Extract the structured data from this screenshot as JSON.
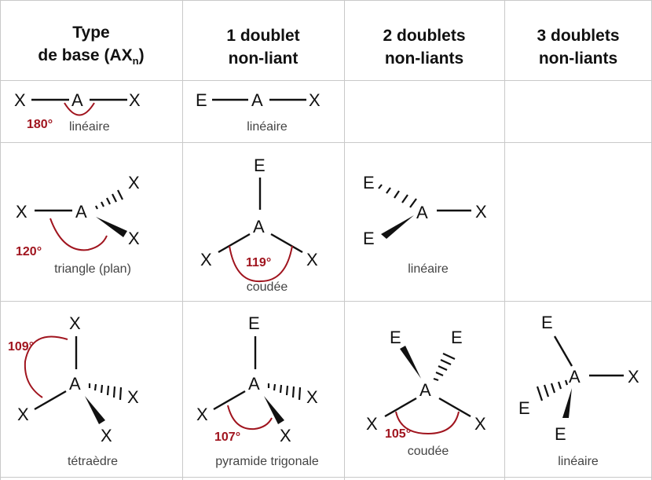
{
  "headers": [
    {
      "line1": "Type",
      "line2_prefix": "de base (AX",
      "line2_sub": "n",
      "line2_suffix": ")"
    },
    {
      "line1": "1 doublet",
      "line2": "non-liant"
    },
    {
      "line1": "2 doublets",
      "line2": "non-liants"
    },
    {
      "line1": "3 doublets",
      "line2": "non-liants"
    }
  ],
  "atoms": {
    "central": "A",
    "ligand": "X",
    "lone_pair": "E"
  },
  "cells": {
    "r1c1": {
      "label": "linéaire",
      "angle": "180°"
    },
    "r1c2": {
      "label": "linéaire"
    },
    "r2c1": {
      "label": "triangle (plan)",
      "angle": "120°"
    },
    "r2c2": {
      "label": "coudée",
      "angle": "119°"
    },
    "r2c3": {
      "label": "linéaire"
    },
    "r3c1": {
      "label": "tétraèdre",
      "angle": "109°"
    },
    "r3c2": {
      "label": "pyramide trigonale",
      "angle": "107°"
    },
    "r3c3": {
      "label": "coudée",
      "angle": "105°"
    },
    "r3c4": {
      "label": "linéaire"
    }
  },
  "colors": {
    "angle": "#a0141e",
    "grid": "#c9c9c9",
    "text": "#111111"
  }
}
